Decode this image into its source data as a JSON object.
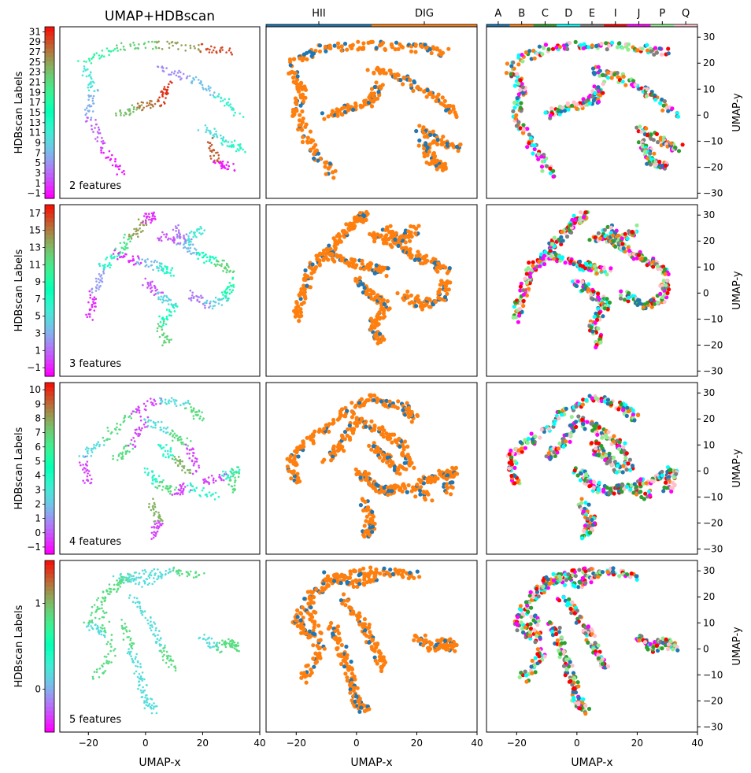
{
  "figure": {
    "title": "UMAP+HDBscan",
    "xlabel": "UMAP-x",
    "right_ylabel": "UMAP-y",
    "cbar_label": "HDBscan Labels"
  },
  "class_bar": {
    "categories": [
      "HII",
      "DIG"
    ],
    "colors": [
      "#1f77b4",
      "#ff7f0e"
    ]
  },
  "bpt_bar": {
    "categories": [
      "A",
      "B",
      "C",
      "D",
      "E",
      "I",
      "J",
      "P",
      "Q"
    ],
    "colors": [
      "#1f77b4",
      "#ff7f0e",
      "#2ca02c",
      "#00ffff",
      "#7f7f7f",
      "#ff0000",
      "#ff00ff",
      "#90ee90",
      "#ffc0cb"
    ]
  },
  "chart_data": [
    {
      "type": "scatter",
      "panel": "2 features",
      "xlim": [
        -30,
        40
      ],
      "ylim": [
        -32,
        34
      ],
      "xticks": [
        -20,
        0,
        20,
        40
      ],
      "yticks": [
        -30,
        -20,
        -10,
        0,
        10,
        20,
        30
      ],
      "cbar_ticks": [
        -1,
        1,
        3,
        5,
        7,
        9,
        11,
        13,
        15,
        17,
        19,
        21,
        23,
        25,
        27,
        29,
        31
      ],
      "cbar_range": [
        -2,
        32
      ]
    },
    {
      "type": "scatter",
      "panel": "3 features",
      "xlim": [
        -30,
        40
      ],
      "ylim": [
        -32,
        34
      ],
      "xticks": [
        -20,
        0,
        20,
        40
      ],
      "yticks": [
        -30,
        -20,
        -10,
        0,
        10,
        20,
        30
      ],
      "cbar_ticks": [
        -1,
        1,
        3,
        5,
        7,
        9,
        11,
        13,
        15,
        17
      ],
      "cbar_range": [
        -2,
        18
      ]
    },
    {
      "type": "scatter",
      "panel": "4 features",
      "xlim": [
        -30,
        40
      ],
      "ylim": [
        -32,
        34
      ],
      "xticks": [
        -20,
        0,
        20,
        40
      ],
      "yticks": [
        -30,
        -20,
        -10,
        0,
        10,
        20,
        30
      ],
      "cbar_ticks": [
        -1,
        0,
        1,
        2,
        3,
        4,
        5,
        6,
        7,
        8,
        9,
        10
      ],
      "cbar_range": [
        -1.5,
        10.5
      ]
    },
    {
      "type": "scatter",
      "panel": "5 features",
      "xlim": [
        -30,
        40
      ],
      "ylim": [
        -32,
        34
      ],
      "xticks": [
        -20,
        0,
        20,
        40
      ],
      "yticks": [
        -30,
        -20,
        -10,
        0,
        10,
        20,
        30
      ],
      "cbar_ticks": [
        0,
        1
      ],
      "cbar_range": [
        -0.5,
        1.5
      ]
    }
  ]
}
